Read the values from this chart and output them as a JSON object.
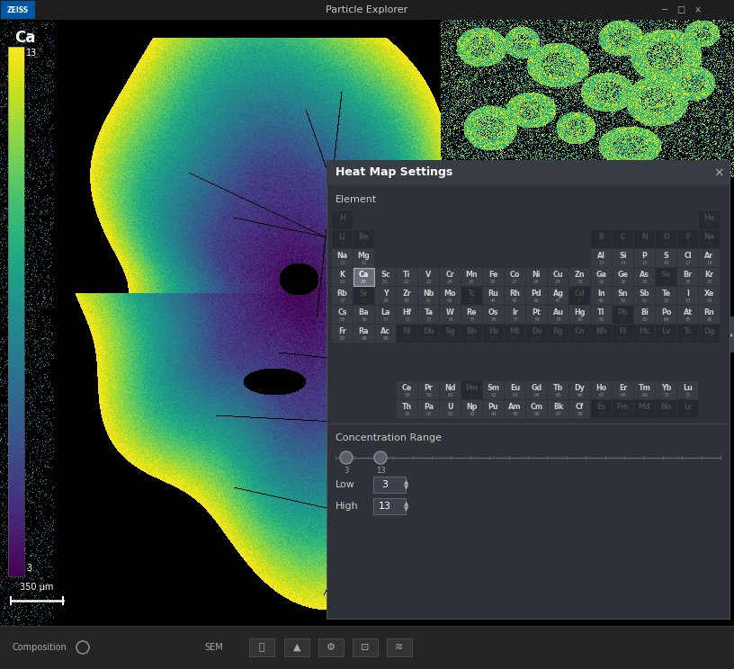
{
  "title": "Particle Explorer",
  "bg_color": "#000000",
  "titlebar_color": "#1e1e1e",
  "panel_title": "Heat Map Settings",
  "element_label": "Element",
  "conc_label": "Concentration Range",
  "low_label": "Low",
  "high_label": "High",
  "low_val": "3",
  "high_val": "13",
  "colorbar_label": "Ca",
  "colorbar_low": 3,
  "colorbar_high": 13,
  "scale_bar_text": "350 μm",
  "periodic_table": {
    "rows": [
      {
        "row": 1,
        "elements": [
          {
            "sym": "H",
            "num": 1,
            "col": 1
          },
          {
            "sym": "He",
            "num": 2,
            "col": 18
          }
        ]
      },
      {
        "row": 2,
        "elements": [
          {
            "sym": "Li",
            "num": 3,
            "col": 1
          },
          {
            "sym": "Be",
            "num": 4,
            "col": 2
          },
          {
            "sym": "B",
            "num": 5,
            "col": 13
          },
          {
            "sym": "C",
            "num": 6,
            "col": 14
          },
          {
            "sym": "N",
            "num": 7,
            "col": 15
          },
          {
            "sym": "O",
            "num": 8,
            "col": 16
          },
          {
            "sym": "F",
            "num": 9,
            "col": 17
          },
          {
            "sym": "Ne",
            "num": 10,
            "col": 18
          }
        ]
      },
      {
        "row": 3,
        "elements": [
          {
            "sym": "Na",
            "num": 11,
            "col": 1
          },
          {
            "sym": "Mg",
            "num": 12,
            "col": 2
          },
          {
            "sym": "Al",
            "num": 13,
            "col": 13
          },
          {
            "sym": "Si",
            "num": 14,
            "col": 14
          },
          {
            "sym": "P",
            "num": 15,
            "col": 15
          },
          {
            "sym": "S",
            "num": 16,
            "col": 16
          },
          {
            "sym": "Cl",
            "num": 17,
            "col": 17
          },
          {
            "sym": "Ar",
            "num": 18,
            "col": 18
          }
        ]
      },
      {
        "row": 4,
        "elements": [
          {
            "sym": "K",
            "num": 19,
            "col": 1
          },
          {
            "sym": "Ca",
            "num": 20,
            "col": 2
          },
          {
            "sym": "Sc",
            "num": 21,
            "col": 3
          },
          {
            "sym": "Ti",
            "num": 22,
            "col": 4
          },
          {
            "sym": "V",
            "num": 23,
            "col": 5
          },
          {
            "sym": "Cr",
            "num": 24,
            "col": 6
          },
          {
            "sym": "Mn",
            "num": 25,
            "col": 7
          },
          {
            "sym": "Fe",
            "num": 26,
            "col": 8
          },
          {
            "sym": "Co",
            "num": 27,
            "col": 9
          },
          {
            "sym": "Ni",
            "num": 28,
            "col": 10
          },
          {
            "sym": "Cu",
            "num": 29,
            "col": 11
          },
          {
            "sym": "Zn",
            "num": 30,
            "col": 12
          },
          {
            "sym": "Ga",
            "num": 31,
            "col": 13
          },
          {
            "sym": "Ge",
            "num": 32,
            "col": 14
          },
          {
            "sym": "As",
            "num": 33,
            "col": 15
          },
          {
            "sym": "Se",
            "num": 34,
            "col": 16
          },
          {
            "sym": "Br",
            "num": 35,
            "col": 17
          },
          {
            "sym": "Kr",
            "num": 36,
            "col": 18
          }
        ]
      },
      {
        "row": 5,
        "elements": [
          {
            "sym": "Rb",
            "num": 37,
            "col": 1
          },
          {
            "sym": "Sr",
            "num": 38,
            "col": 2
          },
          {
            "sym": "Y",
            "num": 39,
            "col": 3
          },
          {
            "sym": "Zr",
            "num": 40,
            "col": 4
          },
          {
            "sym": "Nb",
            "num": 41,
            "col": 5
          },
          {
            "sym": "Mo",
            "num": 42,
            "col": 6
          },
          {
            "sym": "Tc",
            "num": 43,
            "col": 7
          },
          {
            "sym": "Ru",
            "num": 44,
            "col": 8
          },
          {
            "sym": "Rh",
            "num": 45,
            "col": 9
          },
          {
            "sym": "Pd",
            "num": 46,
            "col": 10
          },
          {
            "sym": "Ag",
            "num": 47,
            "col": 11
          },
          {
            "sym": "Cd",
            "num": 48,
            "col": 12
          },
          {
            "sym": "In",
            "num": 49,
            "col": 13
          },
          {
            "sym": "Sn",
            "num": 50,
            "col": 14
          },
          {
            "sym": "Sb",
            "num": 51,
            "col": 15
          },
          {
            "sym": "Te",
            "num": 52,
            "col": 16
          },
          {
            "sym": "I",
            "num": 53,
            "col": 17
          },
          {
            "sym": "Xe",
            "num": 54,
            "col": 18
          }
        ]
      },
      {
        "row": 6,
        "elements": [
          {
            "sym": "Cs",
            "num": 55,
            "col": 1
          },
          {
            "sym": "Ba",
            "num": 56,
            "col": 2
          },
          {
            "sym": "La",
            "num": 57,
            "col": 3
          },
          {
            "sym": "Hf",
            "num": 72,
            "col": 4
          },
          {
            "sym": "Ta",
            "num": 73,
            "col": 5
          },
          {
            "sym": "W",
            "num": 74,
            "col": 6
          },
          {
            "sym": "Re",
            "num": 75,
            "col": 7
          },
          {
            "sym": "Os",
            "num": 76,
            "col": 8
          },
          {
            "sym": "Ir",
            "num": 77,
            "col": 9
          },
          {
            "sym": "Pt",
            "num": 78,
            "col": 10
          },
          {
            "sym": "Au",
            "num": 79,
            "col": 11
          },
          {
            "sym": "Hg",
            "num": 80,
            "col": 12
          },
          {
            "sym": "Tl",
            "num": 81,
            "col": 13
          },
          {
            "sym": "Pb",
            "num": 82,
            "col": 14
          },
          {
            "sym": "Bi",
            "num": 83,
            "col": 15
          },
          {
            "sym": "Po",
            "num": 84,
            "col": 16
          },
          {
            "sym": "At",
            "num": 85,
            "col": 17
          },
          {
            "sym": "Rn",
            "num": 86,
            "col": 18
          }
        ]
      },
      {
        "row": 7,
        "elements": [
          {
            "sym": "Fr",
            "num": 87,
            "col": 1
          },
          {
            "sym": "Ra",
            "num": 88,
            "col": 2
          },
          {
            "sym": "Ac",
            "num": 89,
            "col": 3
          },
          {
            "sym": "Rf",
            "num": 104,
            "col": 4
          },
          {
            "sym": "Db",
            "num": 105,
            "col": 5
          },
          {
            "sym": "Sg",
            "num": 106,
            "col": 6
          },
          {
            "sym": "Bh",
            "num": 107,
            "col": 7
          },
          {
            "sym": "Hs",
            "num": 108,
            "col": 8
          },
          {
            "sym": "Mt",
            "num": 109,
            "col": 9
          },
          {
            "sym": "Ds",
            "num": 110,
            "col": 10
          },
          {
            "sym": "Rg",
            "num": 111,
            "col": 11
          },
          {
            "sym": "Cn",
            "num": 112,
            "col": 12
          },
          {
            "sym": "Nh",
            "num": 113,
            "col": 13
          },
          {
            "sym": "Fl",
            "num": 114,
            "col": 14
          },
          {
            "sym": "Mc",
            "num": 115,
            "col": 15
          },
          {
            "sym": "Lv",
            "num": 116,
            "col": 16
          },
          {
            "sym": "Ts",
            "num": 117,
            "col": 17
          },
          {
            "sym": "Og",
            "num": 118,
            "col": 18
          }
        ]
      }
    ],
    "lanthanides": [
      {
        "sym": "Ce",
        "num": 58
      },
      {
        "sym": "Pr",
        "num": 59
      },
      {
        "sym": "Nd",
        "num": 60
      },
      {
        "sym": "Pm",
        "num": 61
      },
      {
        "sym": "Sm",
        "num": 62
      },
      {
        "sym": "Eu",
        "num": 63
      },
      {
        "sym": "Gd",
        "num": 64
      },
      {
        "sym": "Tb",
        "num": 65
      },
      {
        "sym": "Dy",
        "num": 66
      },
      {
        "sym": "Ho",
        "num": 67
      },
      {
        "sym": "Er",
        "num": 68
      },
      {
        "sym": "Tm",
        "num": 69
      },
      {
        "sym": "Yb",
        "num": 70
      },
      {
        "sym": "Lu",
        "num": 71
      }
    ],
    "actinides": [
      {
        "sym": "Th",
        "num": 90
      },
      {
        "sym": "Pa",
        "num": 91
      },
      {
        "sym": "U",
        "num": 92
      },
      {
        "sym": "Np",
        "num": 93
      },
      {
        "sym": "Pu",
        "num": 94
      },
      {
        "sym": "Am",
        "num": 95
      },
      {
        "sym": "Cm",
        "num": 96
      },
      {
        "sym": "Bk",
        "num": 97
      },
      {
        "sym": "Cf",
        "num": 98
      },
      {
        "sym": "Es",
        "num": 99
      },
      {
        "sym": "Fm",
        "num": 100
      },
      {
        "sym": "Md",
        "num": 101
      },
      {
        "sym": "No",
        "num": 102
      },
      {
        "sym": "Lr",
        "num": 103
      }
    ]
  },
  "active_element": "Ca",
  "highlighted_elements": [
    "Na",
    "Mg",
    "Al",
    "Si",
    "P",
    "S",
    "Cl",
    "Ar",
    "K",
    "Ca",
    "Sc",
    "Ti",
    "V",
    "Cr",
    "Mn",
    "Fe",
    "Co",
    "Ni",
    "Cu",
    "Zn",
    "Ga",
    "Ge",
    "As",
    "Br",
    "Kr",
    "Rb",
    "Y",
    "Zr",
    "Nb",
    "Mo",
    "Ru",
    "Rh",
    "Pd",
    "Ag",
    "In",
    "Sn",
    "Sb",
    "Te",
    "I",
    "Xe",
    "Cs",
    "Ba",
    "La",
    "Hf",
    "Ta",
    "W",
    "Re",
    "Os",
    "Ir",
    "Pt",
    "Au",
    "Hg",
    "Tl",
    "Bi",
    "Po",
    "At",
    "Rn",
    "Fr",
    "Ra",
    "Ac",
    "Ce",
    "Pr",
    "Nd",
    "Sm",
    "Eu",
    "Gd",
    "Tb",
    "Dy",
    "Ho",
    "Er",
    "Tm",
    "Yb",
    "Lu",
    "Th",
    "Pa",
    "U",
    "Np",
    "Pu",
    "Am",
    "Cm",
    "Bk",
    "Cf"
  ],
  "dim_elements": [
    "Se",
    "Sr",
    "Tc",
    "Cd",
    "Pb",
    "Rf",
    "Db",
    "Sg",
    "Bh",
    "Hs",
    "Mt",
    "Ds",
    "Rg",
    "Cn",
    "Nh",
    "Fl",
    "Mc",
    "Lv",
    "Ts",
    "Og",
    "Pm",
    "Es",
    "Fm",
    "Md",
    "No",
    "Lr",
    "B",
    "C",
    "N",
    "O",
    "F",
    "Ne",
    "Li",
    "Be",
    "H",
    "He"
  ]
}
